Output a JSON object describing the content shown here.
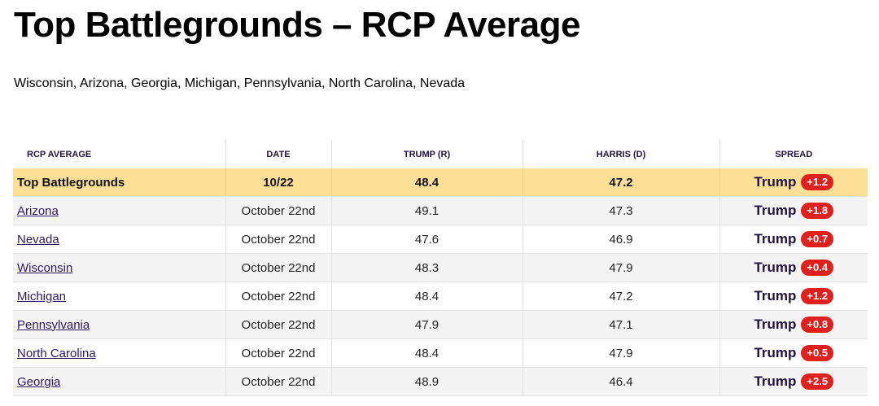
{
  "header": {
    "title": "Top Battlegrounds – RCP Average",
    "subtitle": "Wisconsin, Arizona, Georgia, Michigan, Pennsylvania, North Carolina, Nevada"
  },
  "table": {
    "columns": [
      "RCP AVERAGE",
      "DATE",
      "TRUMP (R)",
      "HARRIS (D)",
      "SPREAD"
    ],
    "summary": {
      "name": "Top Battlegrounds",
      "date": "10/22",
      "trump": "48.4",
      "harris": "47.2",
      "spread_leader": "Trump",
      "spread_value": "+1.2"
    },
    "rows": [
      {
        "state": "Arizona",
        "date": "October 22nd",
        "trump": "49.1",
        "harris": "47.3",
        "spread_leader": "Trump",
        "spread_value": "+1.8"
      },
      {
        "state": "Nevada",
        "date": "October 22nd",
        "trump": "47.6",
        "harris": "46.9",
        "spread_leader": "Trump",
        "spread_value": "+0.7"
      },
      {
        "state": "Wisconsin",
        "date": "October 22nd",
        "trump": "48.3",
        "harris": "47.9",
        "spread_leader": "Trump",
        "spread_value": "+0.4"
      },
      {
        "state": "Michigan",
        "date": "October 22nd",
        "trump": "48.4",
        "harris": "47.2",
        "spread_leader": "Trump",
        "spread_value": "+1.2"
      },
      {
        "state": "Pennsylvania",
        "date": "October 22nd",
        "trump": "47.9",
        "harris": "47.1",
        "spread_leader": "Trump",
        "spread_value": "+0.8"
      },
      {
        "state": "North Carolina",
        "date": "October 22nd",
        "trump": "48.4",
        "harris": "47.9",
        "spread_leader": "Trump",
        "spread_value": "+0.5"
      },
      {
        "state": "Georgia",
        "date": "October 22nd",
        "trump": "48.9",
        "harris": "46.4",
        "spread_leader": "Trump",
        "spread_value": "+2.5"
      }
    ]
  },
  "colors": {
    "summary_background": "#fddf95",
    "badge_red": "#e0201c",
    "header_text": "#1f1240",
    "alt_row": "#f4f4f4"
  }
}
